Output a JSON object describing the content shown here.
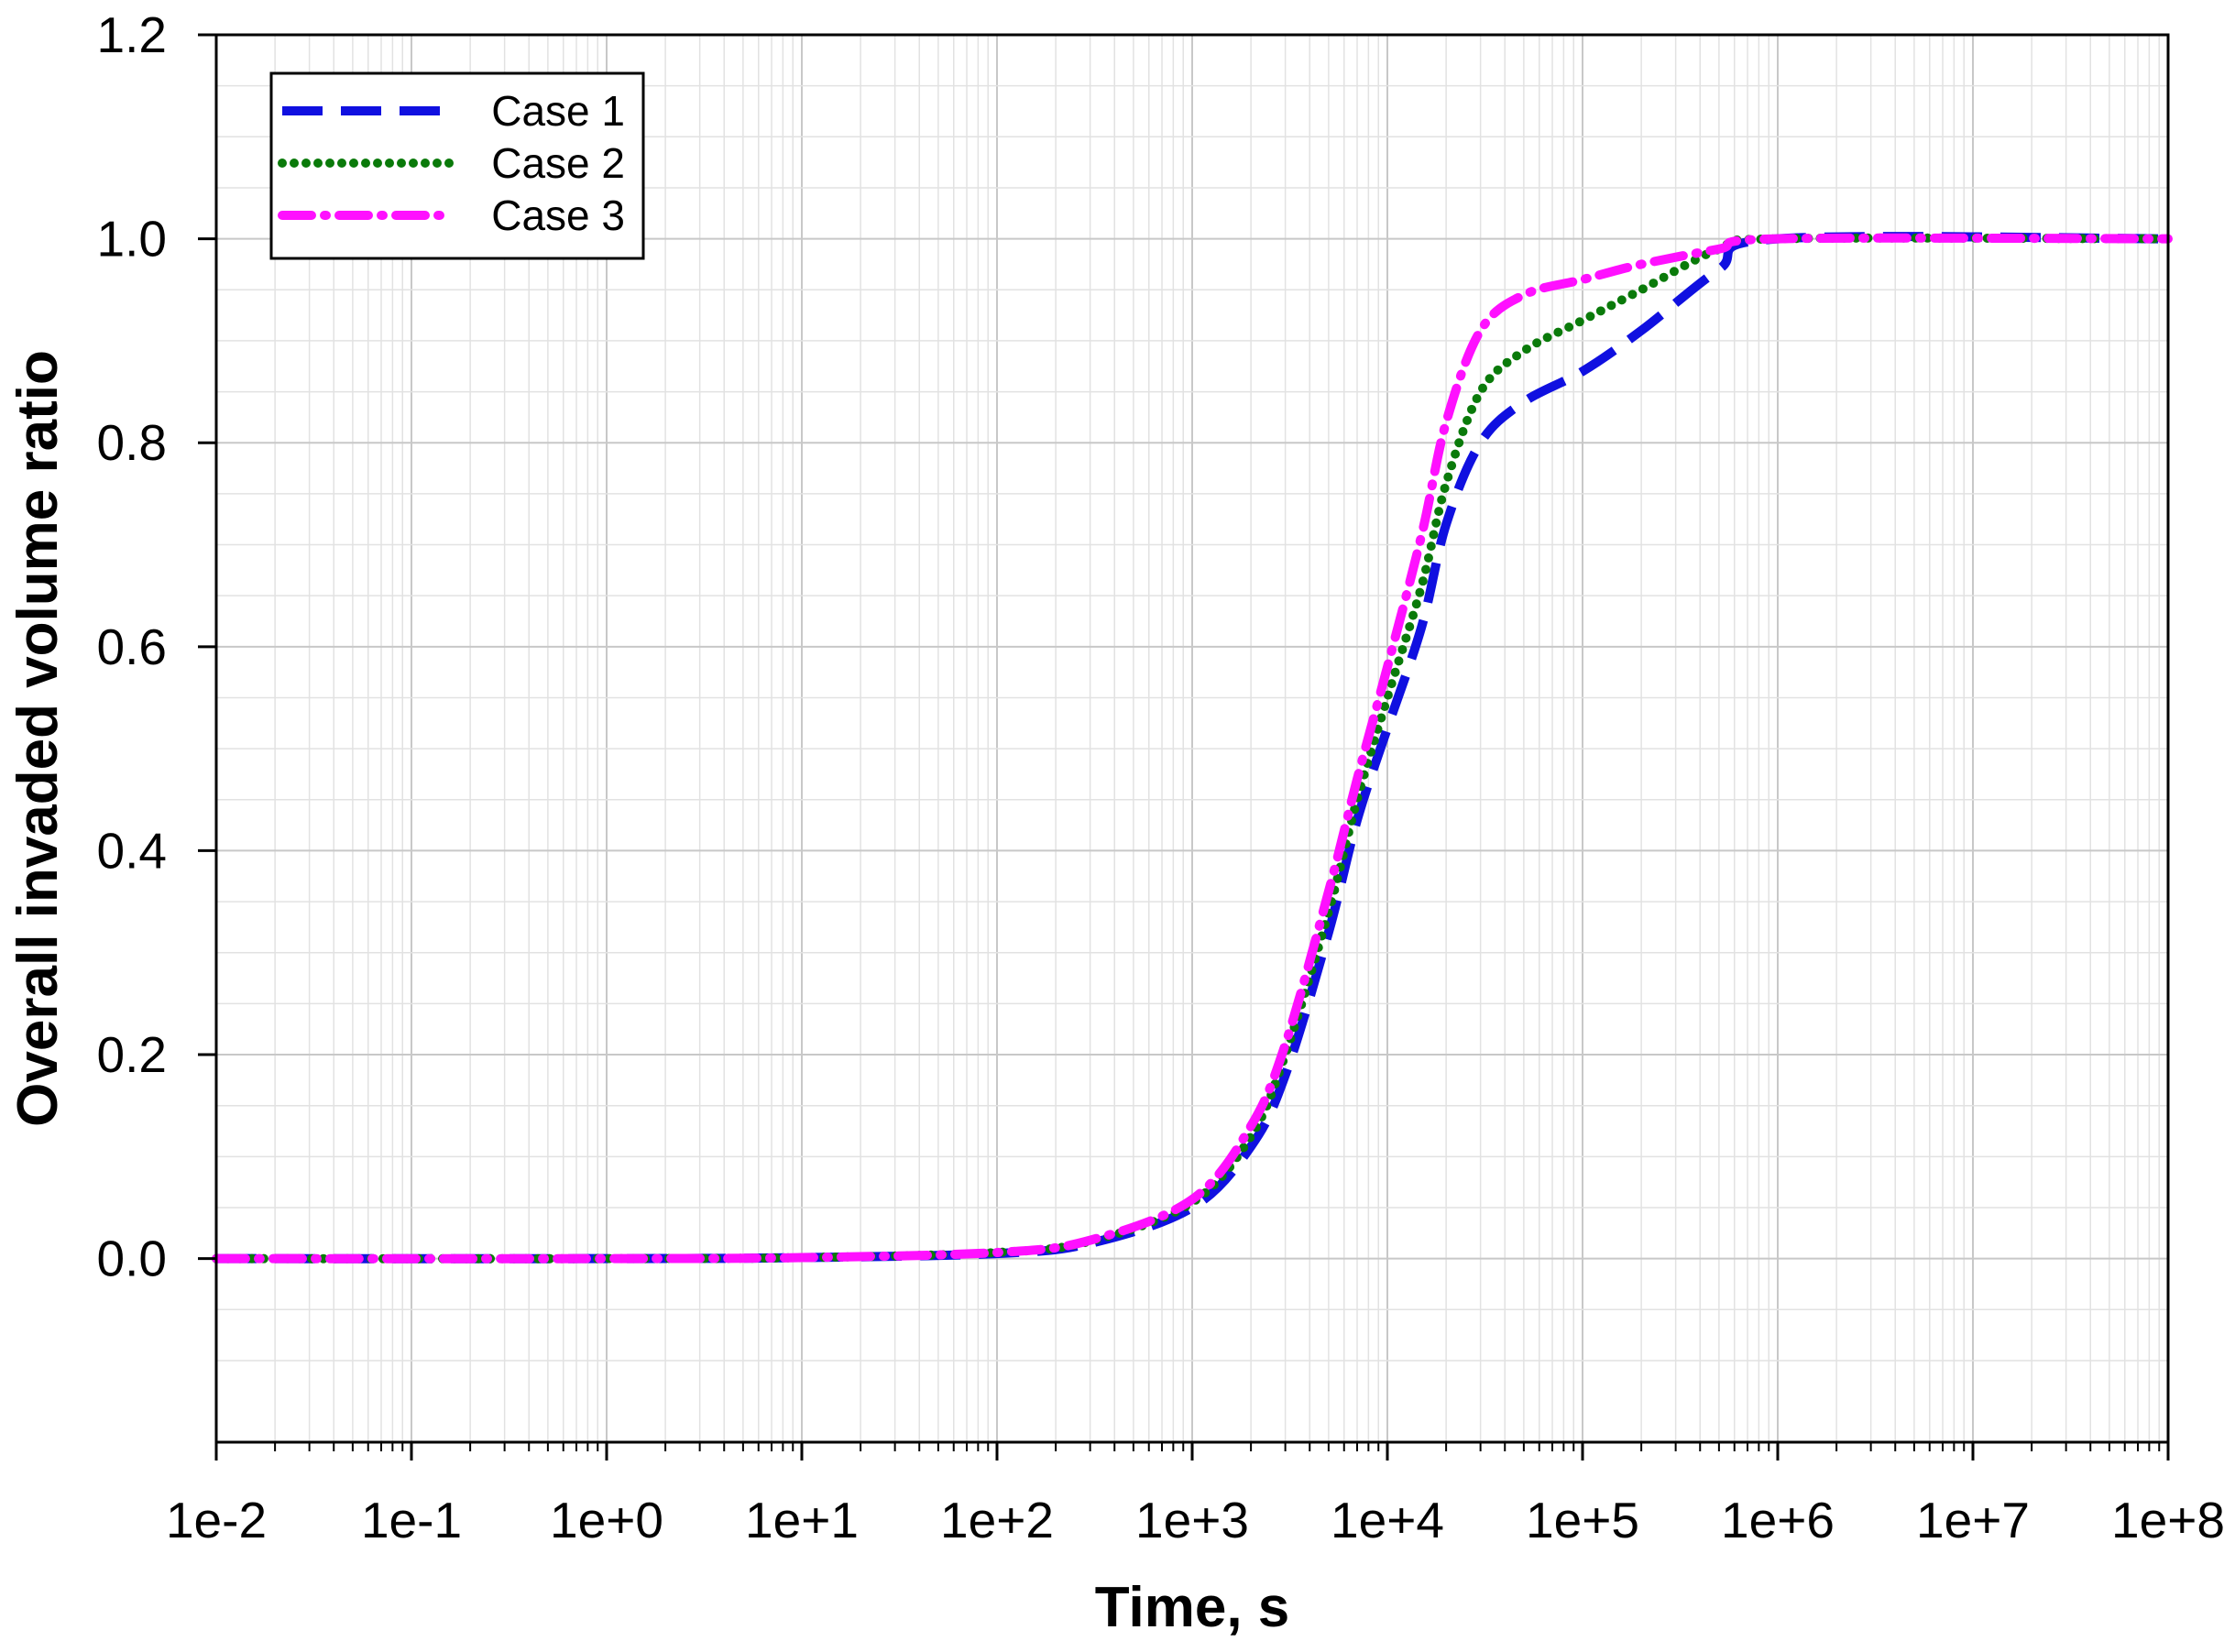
{
  "chart_data": {
    "type": "line",
    "title": "",
    "xlabel": "Time, s",
    "ylabel": "Overall invaded volume ratio",
    "x_scale": "log",
    "xlim": [
      0.01,
      100000000
    ],
    "ylim": [
      -0.18,
      1.2
    ],
    "x_ticks": [
      0.01,
      0.1,
      1,
      10,
      100,
      1000,
      10000,
      100000,
      1000000,
      10000000,
      100000000
    ],
    "x_tick_labels": [
      "1e-2",
      "1e-1",
      "1e+0",
      "1e+1",
      "1e+2",
      "1e+3",
      "1e+4",
      "1e+5",
      "1e+6",
      "1e+7",
      "1e+8"
    ],
    "y_ticks": [
      0.0,
      0.2,
      0.4,
      0.6,
      0.8,
      1.0,
      1.2
    ],
    "y_tick_labels": [
      "0.0",
      "0.2",
      "0.4",
      "0.6",
      "0.8",
      "1.0",
      "1.2"
    ],
    "grid": true,
    "legend_position": "top-left",
    "series": [
      {
        "name": "Case 1",
        "color": "#1010e0",
        "line_style": "dashed",
        "points": [
          [
            0.01,
            0.0
          ],
          [
            1,
            0.0
          ],
          [
            10,
            0.001
          ],
          [
            100,
            0.005
          ],
          [
            300,
            0.015
          ],
          [
            1000,
            0.05
          ],
          [
            2000,
            0.11
          ],
          [
            3000,
            0.18
          ],
          [
            5000,
            0.32
          ],
          [
            7000,
            0.43
          ],
          [
            10000,
            0.52
          ],
          [
            15000,
            0.62
          ],
          [
            20000,
            0.72
          ],
          [
            30000,
            0.8
          ],
          [
            50000,
            0.84
          ],
          [
            100000,
            0.87
          ],
          [
            200000,
            0.91
          ],
          [
            500000,
            0.97
          ],
          [
            1000000,
            1.0
          ],
          [
            100000000,
            1.0
          ]
        ]
      },
      {
        "name": "Case 2",
        "color": "#0a7a0a",
        "line_style": "dotted",
        "points": [
          [
            0.01,
            0.0
          ],
          [
            1,
            0.0
          ],
          [
            10,
            0.001
          ],
          [
            100,
            0.006
          ],
          [
            300,
            0.017
          ],
          [
            1000,
            0.055
          ],
          [
            2000,
            0.12
          ],
          [
            3000,
            0.2
          ],
          [
            5000,
            0.34
          ],
          [
            7000,
            0.45
          ],
          [
            10000,
            0.55
          ],
          [
            15000,
            0.66
          ],
          [
            20000,
            0.76
          ],
          [
            30000,
            0.85
          ],
          [
            50000,
            0.89
          ],
          [
            100000,
            0.92
          ],
          [
            200000,
            0.95
          ],
          [
            500000,
            0.99
          ],
          [
            1000000,
            1.0
          ],
          [
            100000000,
            1.0
          ]
        ]
      },
      {
        "name": "Case 3",
        "color": "#ff10ff",
        "line_style": "dash-dot",
        "points": [
          [
            0.01,
            0.0
          ],
          [
            1,
            0.0
          ],
          [
            10,
            0.001
          ],
          [
            100,
            0.006
          ],
          [
            300,
            0.018
          ],
          [
            1000,
            0.058
          ],
          [
            2000,
            0.13
          ],
          [
            3000,
            0.21
          ],
          [
            5000,
            0.36
          ],
          [
            7000,
            0.47
          ],
          [
            10000,
            0.58
          ],
          [
            15000,
            0.71
          ],
          [
            20000,
            0.82
          ],
          [
            30000,
            0.91
          ],
          [
            50000,
            0.945
          ],
          [
            100000,
            0.96
          ],
          [
            200000,
            0.975
          ],
          [
            500000,
            0.99
          ],
          [
            1000000,
            1.0
          ],
          [
            100000000,
            1.0
          ]
        ]
      }
    ]
  }
}
